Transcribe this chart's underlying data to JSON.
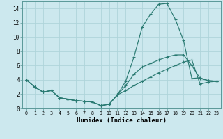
{
  "xlabel": "Humidex (Indice chaleur)",
  "bg_color": "#cce8ee",
  "line_color": "#2a7a72",
  "grid_color": "#afd4da",
  "xlim": [
    -0.5,
    23.5
  ],
  "ylim": [
    0,
    15
  ],
  "xticks": [
    0,
    1,
    2,
    3,
    4,
    5,
    6,
    7,
    8,
    9,
    10,
    11,
    12,
    13,
    14,
    15,
    16,
    17,
    18,
    19,
    20,
    21,
    22,
    23
  ],
  "yticks": [
    0,
    2,
    4,
    6,
    8,
    10,
    12,
    14
  ],
  "line1_x": [
    0,
    1,
    2,
    3,
    4,
    5,
    6,
    7,
    8,
    9,
    10,
    11,
    12,
    13,
    14,
    15,
    16,
    17,
    18,
    19,
    20,
    21,
    22,
    23
  ],
  "line1_y": [
    4.0,
    3.0,
    2.3,
    2.5,
    1.5,
    1.3,
    1.1,
    1.0,
    0.9,
    0.4,
    0.6,
    1.9,
    3.8,
    7.2,
    11.4,
    13.2,
    14.6,
    14.7,
    12.5,
    9.5,
    4.2,
    4.3,
    3.9,
    3.8
  ],
  "line2_x": [
    0,
    1,
    2,
    3,
    4,
    5,
    6,
    7,
    8,
    9,
    10,
    11,
    12,
    13,
    14,
    15,
    16,
    17,
    18,
    19,
    20,
    21,
    22,
    23
  ],
  "line2_y": [
    4.0,
    3.0,
    2.3,
    2.5,
    1.5,
    1.3,
    1.1,
    1.0,
    0.9,
    0.4,
    0.6,
    1.9,
    3.2,
    4.8,
    5.8,
    6.3,
    6.8,
    7.2,
    7.5,
    7.5,
    6.0,
    4.2,
    3.9,
    3.8
  ],
  "line3_x": [
    0,
    1,
    2,
    3,
    4,
    5,
    6,
    7,
    8,
    9,
    10,
    11,
    12,
    13,
    14,
    15,
    16,
    17,
    18,
    19,
    20,
    21,
    22,
    23
  ],
  "line3_y": [
    4.0,
    3.0,
    2.3,
    2.5,
    1.5,
    1.3,
    1.1,
    1.0,
    0.9,
    0.4,
    0.6,
    1.9,
    2.5,
    3.2,
    3.8,
    4.4,
    5.0,
    5.5,
    6.0,
    6.5,
    6.8,
    3.4,
    3.7,
    3.8
  ]
}
